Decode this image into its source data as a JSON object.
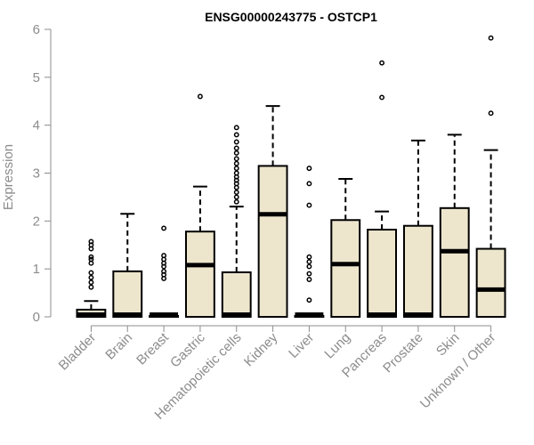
{
  "chart_data": {
    "type": "boxplot",
    "title": "ENSG00000243775 - OSTCP1",
    "ylabel": "Expression",
    "xlabel": "",
    "ylim": [
      0,
      6
    ],
    "yticks": [
      0,
      1,
      2,
      3,
      4,
      5,
      6
    ],
    "grid": false,
    "legend": "none",
    "box_fill": "#ede6cd",
    "line_color": "#000000",
    "axis_color": "#8c8c8c",
    "categories": [
      "Bladder",
      "Brain",
      "Breast",
      "Gastric",
      "Hematopoietic cells",
      "Kidney",
      "Liver",
      "Lung",
      "Pancreas",
      "Prostate",
      "Skin",
      "Unknown / Other"
    ],
    "boxes": [
      {
        "category": "Bladder",
        "whisker_low": 0,
        "q1": 0,
        "median": 0.02,
        "q3": 0.15,
        "whisker_high": 0.33,
        "outliers": [
          0.62,
          0.72,
          0.82,
          0.92,
          1.12,
          1.2,
          1.25,
          1.42,
          1.5,
          1.57
        ]
      },
      {
        "category": "Brain",
        "whisker_low": 0,
        "q1": 0,
        "median": 0.01,
        "q3": 0.95,
        "whisker_high": 2.15,
        "outliers": []
      },
      {
        "category": "Breast",
        "whisker_low": 0,
        "q1": 0,
        "median": 0.01,
        "q3": 0.02,
        "whisker_high": 0.03,
        "outliers": [
          0.8,
          0.88,
          0.95,
          1.05,
          1.12,
          1.2,
          1.28,
          1.85
        ]
      },
      {
        "category": "Gastric",
        "whisker_low": 0,
        "q1": 0,
        "median": 1.08,
        "q3": 1.78,
        "whisker_high": 2.72,
        "outliers": [
          4.6
        ]
      },
      {
        "category": "Hematopoietic cells",
        "whisker_low": 0,
        "q1": 0,
        "median": 0.02,
        "q3": 0.93,
        "whisker_high": 2.3,
        "outliers": [
          2.4,
          2.5,
          2.6,
          2.7,
          2.78,
          2.85,
          2.92,
          3.0,
          3.1,
          3.2,
          3.3,
          3.42,
          3.52,
          3.65,
          3.8,
          3.95
        ]
      },
      {
        "category": "Kidney",
        "whisker_low": 0,
        "q1": 0,
        "median": 2.14,
        "q3": 3.15,
        "whisker_high": 4.4,
        "outliers": []
      },
      {
        "category": "Liver",
        "whisker_low": 0,
        "q1": 0,
        "median": 0.01,
        "q3": 0.02,
        "whisker_high": 0.03,
        "outliers": [
          0.35,
          0.78,
          0.9,
          1.05,
          1.15,
          1.25,
          2.33,
          2.78,
          3.1
        ]
      },
      {
        "category": "Lung",
        "whisker_low": 0,
        "q1": 0,
        "median": 1.1,
        "q3": 2.02,
        "whisker_high": 2.88,
        "outliers": []
      },
      {
        "category": "Pancreas",
        "whisker_low": 0,
        "q1": 0,
        "median": 0.01,
        "q3": 1.82,
        "whisker_high": 2.2,
        "outliers": [
          4.58,
          5.3
        ]
      },
      {
        "category": "Prostate",
        "whisker_low": 0,
        "q1": 0,
        "median": 0.01,
        "q3": 1.9,
        "whisker_high": 3.68,
        "outliers": []
      },
      {
        "category": "Skin",
        "whisker_low": 0,
        "q1": 0,
        "median": 1.37,
        "q3": 2.27,
        "whisker_high": 3.8,
        "outliers": []
      },
      {
        "category": "Unknown / Other",
        "whisker_low": 0,
        "q1": 0,
        "median": 0.57,
        "q3": 1.42,
        "whisker_high": 3.48,
        "outliers": [
          4.25,
          5.82
        ]
      }
    ]
  }
}
